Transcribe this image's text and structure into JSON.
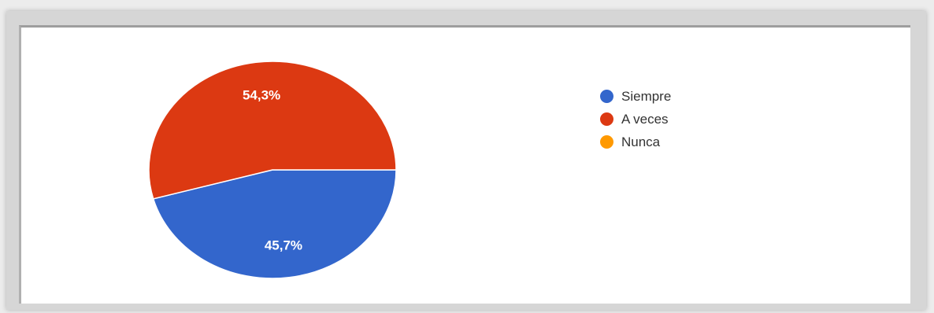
{
  "chart_data": {
    "type": "pie",
    "slices": [
      {
        "label": "Siempre",
        "value": 45.7,
        "display": "45,7%",
        "color": "#3366cc"
      },
      {
        "label": "A veces",
        "value": 54.3,
        "display": "54,3%",
        "color": "#dc3912"
      },
      {
        "label": "Nunca",
        "value": 0,
        "display": "",
        "color": "#ff9900"
      }
    ],
    "legend_position": "right",
    "title": ""
  }
}
